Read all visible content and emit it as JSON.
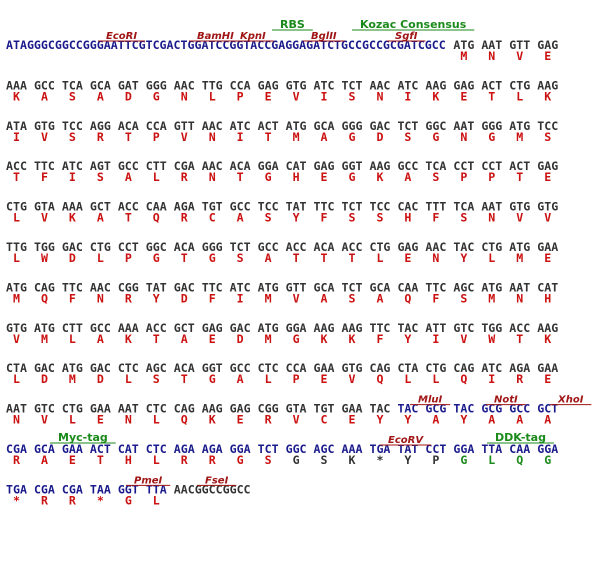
{
  "rows": [
    {
      "labels": [
        "RBS",
        "Kozac Consensus",
        "EcoRI",
        "BamHI",
        "KpnI",
        "BglII",
        "SgfI"
      ],
      "prefix": "ATAGGGCGGCCGGGAATTCGTCGACTGGATCCGGTACCGAGGAGATCTGCCGCCGCGATCGCC",
      "codons": [
        "ATG",
        "AAT",
        "GTT",
        "GAG"
      ],
      "aa": [
        "M",
        "N",
        "V",
        "E"
      ]
    },
    {
      "codons": [
        "AAA",
        "GCC",
        "TCA",
        "GCA",
        "GAT",
        "GGG",
        "AAC",
        "TTG",
        "CCA",
        "GAG",
        "GTG",
        "ATC",
        "TCT",
        "AAC",
        "ATC",
        "AAG",
        "GAG",
        "ACT",
        "CTG",
        "AAG"
      ],
      "aa": [
        "K",
        "A",
        "S",
        "A",
        "D",
        "G",
        "N",
        "L",
        "P",
        "E",
        "V",
        "I",
        "S",
        "N",
        "I",
        "K",
        "E",
        "T",
        "L",
        "K"
      ]
    },
    {
      "codons": [
        "ATA",
        "GTG",
        "TCC",
        "AGG",
        "ACA",
        "CCA",
        "GTT",
        "AAC",
        "ATC",
        "ACT",
        "ATG",
        "GCA",
        "GGG",
        "GAC",
        "TCT",
        "GGC",
        "AAT",
        "GGG",
        "ATG",
        "TCC"
      ],
      "aa": [
        "I",
        "V",
        "S",
        "R",
        "T",
        "P",
        "V",
        "N",
        "I",
        "T",
        "M",
        "A",
        "G",
        "D",
        "S",
        "G",
        "N",
        "G",
        "M",
        "S"
      ]
    },
    {
      "codons": [
        "ACC",
        "TTC",
        "ATC",
        "AGT",
        "GCC",
        "CTT",
        "CGA",
        "AAC",
        "ACA",
        "GGA",
        "CAT",
        "GAG",
        "GGT",
        "AAG",
        "GCC",
        "TCA",
        "CCT",
        "CCT",
        "ACT",
        "GAG"
      ],
      "aa": [
        "T",
        "F",
        "I",
        "S",
        "A",
        "L",
        "R",
        "N",
        "T",
        "G",
        "H",
        "E",
        "G",
        "K",
        "A",
        "S",
        "P",
        "P",
        "T",
        "E"
      ]
    },
    {
      "codons": [
        "CTG",
        "GTA",
        "AAA",
        "GCT",
        "ACC",
        "CAA",
        "AGA",
        "TGT",
        "GCC",
        "TCC",
        "TAT",
        "TTC",
        "TCT",
        "TCC",
        "CAC",
        "TTT",
        "TCA",
        "AAT",
        "GTG",
        "GTG"
      ],
      "aa": [
        "L",
        "V",
        "K",
        "A",
        "T",
        "Q",
        "R",
        "C",
        "A",
        "S",
        "Y",
        "F",
        "S",
        "S",
        "H",
        "F",
        "S",
        "N",
        "V",
        "V"
      ]
    },
    {
      "codons": [
        "TTG",
        "TGG",
        "GAC",
        "CTG",
        "CCT",
        "GGC",
        "ACA",
        "GGG",
        "TCT",
        "GCC",
        "ACC",
        "ACA",
        "ACC",
        "CTG",
        "GAG",
        "AAC",
        "TAC",
        "CTG",
        "ATG",
        "GAA"
      ],
      "aa": [
        "L",
        "W",
        "D",
        "L",
        "P",
        "G",
        "T",
        "G",
        "S",
        "A",
        "T",
        "T",
        "T",
        "L",
        "E",
        "N",
        "Y",
        "L",
        "M",
        "E"
      ]
    },
    {
      "codons": [
        "ATG",
        "CAG",
        "TTC",
        "AAC",
        "CGG",
        "TAT",
        "GAC",
        "TTC",
        "ATC",
        "ATG",
        "GTT",
        "GCA",
        "TCT",
        "GCA",
        "CAA",
        "TTC",
        "AGC",
        "ATG",
        "AAT",
        "CAT"
      ],
      "aa": [
        "M",
        "Q",
        "F",
        "N",
        "R",
        "Y",
        "D",
        "F",
        "I",
        "M",
        "V",
        "A",
        "S",
        "A",
        "Q",
        "F",
        "S",
        "M",
        "N",
        "H"
      ]
    },
    {
      "codons": [
        "GTG",
        "ATG",
        "CTT",
        "GCC",
        "AAA",
        "ACC",
        "GCT",
        "GAG",
        "GAC",
        "ATG",
        "GGA",
        "AAG",
        "AAG",
        "TTC",
        "TAC",
        "ATT",
        "GTC",
        "TGG",
        "ACC",
        "AAG"
      ],
      "aa": [
        "V",
        "M",
        "L",
        "A",
        "K",
        "T",
        "A",
        "E",
        "D",
        "M",
        "G",
        "K",
        "K",
        "F",
        "Y",
        "I",
        "V",
        "W",
        "T",
        "K"
      ]
    },
    {
      "codons": [
        "CTA",
        "GAC",
        "ATG",
        "GAC",
        "CTC",
        "AGC",
        "ACA",
        "GGT",
        "GCC",
        "CTC",
        "CCA",
        "GAA",
        "GTG",
        "CAG",
        "CTA",
        "CTG",
        "CAG",
        "ATC",
        "AGA",
        "GAA"
      ],
      "aa": [
        "L",
        "D",
        "M",
        "D",
        "L",
        "S",
        "T",
        "G",
        "A",
        "L",
        "P",
        "E",
        "V",
        "Q",
        "L",
        "L",
        "Q",
        "I",
        "R",
        "E"
      ]
    },
    {
      "labels": [
        "MluI",
        "NotI",
        "XhoI"
      ],
      "codons": [
        "AAT",
        "GTC",
        "CTG",
        "GAA",
        "AAT",
        "CTC",
        "CAG",
        "AAG",
        "GAG",
        "CGG",
        "GTA",
        "TGT",
        "GAA",
        "TAC",
        "TAC",
        "GCG",
        "TAC",
        "GCG",
        "GCC",
        "GCT"
      ],
      "aa": [
        "N",
        "V",
        "L",
        "E",
        "N",
        "L",
        "Q",
        "K",
        "E",
        "R",
        "V",
        "C",
        "E",
        "Y",
        "Y",
        "A",
        "Y",
        "A",
        "A",
        "A"
      ]
    },
    {
      "labels": [
        "Myc-tag",
        "EcoRV",
        "DDK-tag"
      ],
      "codons": [
        "CGA",
        "GCA",
        "GAA",
        "ACT",
        "CAT",
        "CTC",
        "AGA",
        "AGA",
        "GGA",
        "TCT",
        "GGC",
        "AGC",
        "AAA",
        "TGA",
        "TAT",
        "CCT",
        "GGA",
        "TTA",
        "CAA",
        "GGA"
      ],
      "aa": [
        "R",
        "A",
        "E",
        "T",
        "H",
        "L",
        "R",
        "R",
        "G",
        "S",
        "G",
        "S",
        "K",
        "*",
        "Y",
        "P",
        "G",
        "L",
        "Q",
        "G"
      ]
    },
    {
      "labels": [
        "PmeI",
        "FseI"
      ],
      "codons": [
        "TGA",
        "CGA",
        "CGA",
        "TAA",
        "GGT",
        "TTA",
        "AACGGCCGGCC"
      ],
      "aa": [
        "*",
        "R",
        "R",
        "*",
        "G",
        "L"
      ]
    }
  ]
}
